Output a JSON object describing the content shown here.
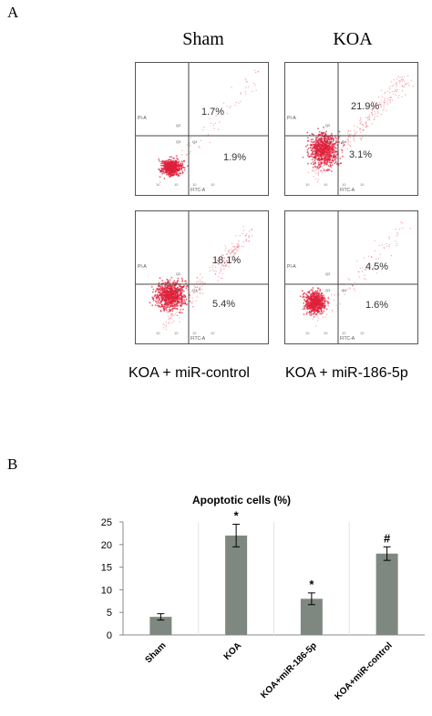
{
  "panel_a": {
    "label": "A",
    "titles": [
      "Sham",
      "KOA"
    ],
    "captions": [
      "KOA + miR-control",
      "KOA + miR-186-5p"
    ],
    "plots": [
      {
        "name": "sham",
        "upper_right": "1.7%",
        "lower_right": "1.9%",
        "x_axis": "FITC-A",
        "y_axis": "PI-A",
        "q2": "Q2",
        "q3": "Q3",
        "q4": "Q4"
      },
      {
        "name": "koa",
        "upper_right": "21.9%",
        "lower_right": "3.1%",
        "x_axis": "FITC-A",
        "y_axis": "PI-A",
        "q2": "Q2",
        "q3": "Q3",
        "q4": "Q4"
      },
      {
        "name": "koa-mir-control",
        "upper_right": "18.1%",
        "lower_right": "5.4%",
        "x_axis": "FITC-A",
        "y_axis": "PI-A",
        "q2": "Q2",
        "q3": "Q3",
        "q4": "Q4"
      },
      {
        "name": "koa-mir-186-5p",
        "upper_right": "4.5%",
        "lower_right": "1.6%",
        "x_axis": "FITC-A",
        "y_axis": "PI-A",
        "q2": "Q2",
        "q3": "Q3",
        "q4": "Q4"
      }
    ],
    "tick_labels": [
      "10",
      "10",
      "10",
      "10"
    ],
    "dot_color": "#e0203a"
  },
  "panel_b": {
    "label": "B"
  },
  "chart_data": {
    "type": "bar",
    "title": "Apoptotic cells (%)",
    "categories": [
      "Sham",
      "KOA",
      "KOA+miR-186-5p",
      "KOA+miR-control"
    ],
    "values": [
      4,
      22,
      8,
      18
    ],
    "errors": [
      0.7,
      2.5,
      1.3,
      1.5
    ],
    "annotations": [
      "",
      "*",
      "*",
      "#"
    ],
    "ylim": [
      0,
      25
    ],
    "yticks": [
      "0",
      "5",
      "10",
      "15",
      "20",
      "25"
    ],
    "ytick_values": [
      0,
      5,
      10,
      15,
      20,
      25
    ],
    "xlabel": "",
    "ylabel": "",
    "bar_color": "#7f8880",
    "grid": false
  }
}
